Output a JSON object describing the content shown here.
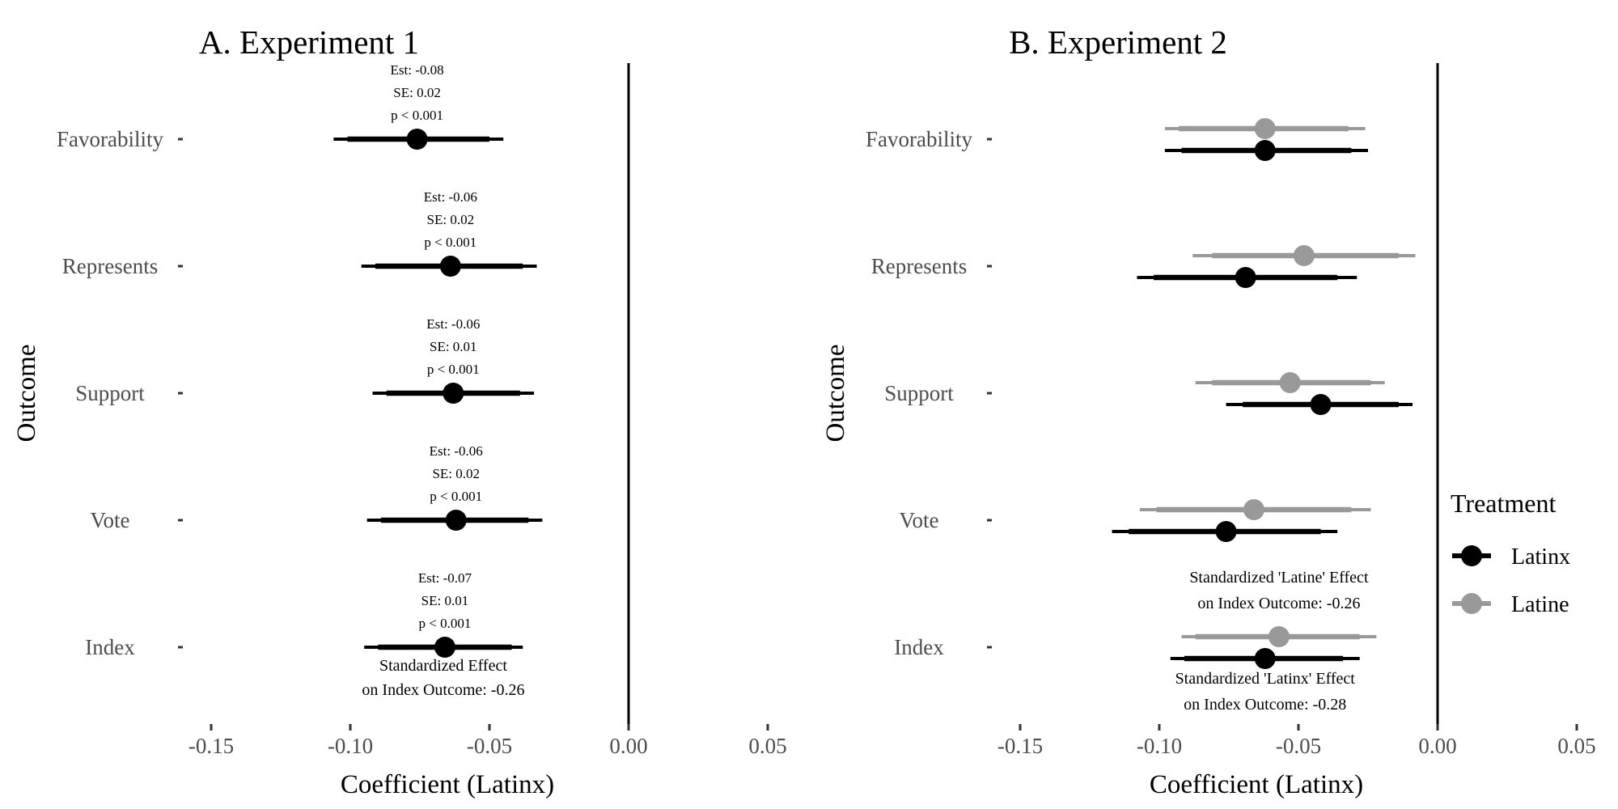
{
  "chart_data": [
    {
      "type": "forest",
      "panel": "A",
      "title": "A. Experiment 1",
      "xlabel": "Coefficient (Latinx)",
      "ylabel": "Outcome",
      "xlim": [
        -0.16,
        0.055
      ],
      "xticks": [
        -0.15,
        -0.1,
        -0.05,
        0.0,
        0.05
      ],
      "xtick_labels": [
        "-0.15",
        "-0.10",
        "-0.05",
        "0.00",
        "0.05"
      ],
      "reference_line": 0.0,
      "categories": [
        "Favorability",
        "Represents",
        "Support",
        "Vote",
        "Index"
      ],
      "series": [
        {
          "name": "Latinx",
          "color": "#000000",
          "points": [
            {
              "category": "Favorability",
              "estimate": -0.076,
              "ci95": [
                -0.106,
                -0.045
              ],
              "ci90": [
                -0.101,
                -0.05
              ]
            },
            {
              "category": "Represents",
              "estimate": -0.064,
              "ci95": [
                -0.096,
                -0.033
              ],
              "ci90": [
                -0.091,
                -0.038
              ]
            },
            {
              "category": "Support",
              "estimate": -0.063,
              "ci95": [
                -0.092,
                -0.034
              ],
              "ci90": [
                -0.087,
                -0.039
              ]
            },
            {
              "category": "Vote",
              "estimate": -0.062,
              "ci95": [
                -0.094,
                -0.031
              ],
              "ci90": [
                -0.089,
                -0.036
              ]
            },
            {
              "category": "Index",
              "estimate": -0.066,
              "ci95": [
                -0.095,
                -0.038
              ],
              "ci90": [
                -0.09,
                -0.042
              ]
            }
          ]
        }
      ],
      "annotations": [
        {
          "category": "Favorability",
          "lines": [
            "Est: -0.08",
            "SE: 0.02",
            "p < 0.001"
          ]
        },
        {
          "category": "Represents",
          "lines": [
            "Est: -0.06",
            "SE: 0.02",
            "p < 0.001"
          ]
        },
        {
          "category": "Support",
          "lines": [
            "Est: -0.06",
            "SE: 0.01",
            "p < 0.001"
          ]
        },
        {
          "category": "Vote",
          "lines": [
            "Est: -0.06",
            "SE: 0.02",
            "p < 0.001"
          ]
        },
        {
          "category": "Index",
          "lines": [
            "Est: -0.07",
            "SE: 0.01",
            "p < 0.001"
          ]
        }
      ],
      "standardized_note": [
        "Standardized Effect",
        "on Index Outcome: -0.26"
      ]
    },
    {
      "type": "forest",
      "panel": "B",
      "title": "B. Experiment 2",
      "xlabel": "Coefficient (Latinx)",
      "ylabel": "Outcome",
      "xlim": [
        -0.16,
        0.055
      ],
      "xticks": [
        -0.15,
        -0.1,
        -0.05,
        0.0,
        0.05
      ],
      "xtick_labels": [
        "-0.15",
        "-0.10",
        "-0.05",
        "0.00",
        "0.05"
      ],
      "reference_line": 0.0,
      "categories": [
        "Favorability",
        "Represents",
        "Support",
        "Vote",
        "Index"
      ],
      "series": [
        {
          "name": "Latine",
          "color": "#999999",
          "points": [
            {
              "category": "Favorability",
              "estimate": -0.062,
              "ci95": [
                -0.098,
                -0.026
              ],
              "ci90": [
                -0.093,
                -0.032
              ]
            },
            {
              "category": "Represents",
              "estimate": -0.048,
              "ci95": [
                -0.088,
                -0.008
              ],
              "ci90": [
                -0.081,
                -0.014
              ]
            },
            {
              "category": "Support",
              "estimate": -0.053,
              "ci95": [
                -0.087,
                -0.019
              ],
              "ci90": [
                -0.081,
                -0.024
              ]
            },
            {
              "category": "Vote",
              "estimate": -0.066,
              "ci95": [
                -0.107,
                -0.024
              ],
              "ci90": [
                -0.101,
                -0.031
              ]
            },
            {
              "category": "Index",
              "estimate": -0.057,
              "ci95": [
                -0.092,
                -0.022
              ],
              "ci90": [
                -0.087,
                -0.028
              ]
            }
          ]
        },
        {
          "name": "Latinx",
          "color": "#000000",
          "points": [
            {
              "category": "Favorability",
              "estimate": -0.062,
              "ci95": [
                -0.098,
                -0.025
              ],
              "ci90": [
                -0.092,
                -0.031
              ]
            },
            {
              "category": "Represents",
              "estimate": -0.069,
              "ci95": [
                -0.108,
                -0.029
              ],
              "ci90": [
                -0.102,
                -0.036
              ]
            },
            {
              "category": "Support",
              "estimate": -0.042,
              "ci95": [
                -0.076,
                -0.009
              ],
              "ci90": [
                -0.07,
                -0.014
              ]
            },
            {
              "category": "Vote",
              "estimate": -0.076,
              "ci95": [
                -0.117,
                -0.036
              ],
              "ci90": [
                -0.111,
                -0.042
              ]
            },
            {
              "category": "Index",
              "estimate": -0.062,
              "ci95": [
                -0.096,
                -0.028
              ],
              "ci90": [
                -0.091,
                -0.034
              ]
            }
          ]
        }
      ],
      "latine_note": [
        "Standardized 'Latine' Effect",
        "on Index Outcome: -0.26"
      ],
      "latinx_note": [
        "Standardized 'Latinx' Effect",
        "on Index Outcome: -0.28"
      ],
      "legend": {
        "title": "Treatment",
        "position": "right",
        "items": [
          {
            "label": "Latinx",
            "color": "#000000"
          },
          {
            "label": "Latine",
            "color": "#999999"
          }
        ]
      }
    }
  ]
}
